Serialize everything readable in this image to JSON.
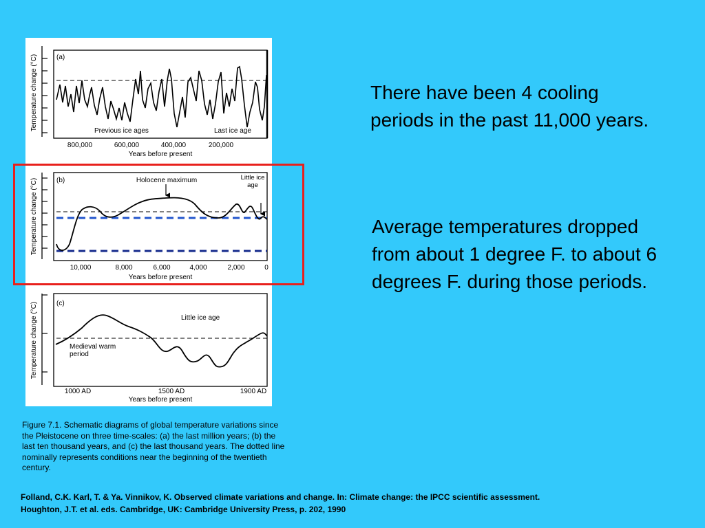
{
  "slide": {
    "point_1": "There have been 4 cooling periods in the past 11,000 years.",
    "point_2": "Average temperatures dropped from about 1 degree F. to about 6 degrees F. during those periods.",
    "caption": "Figure 7.1. Schematic diagrams of global temperature variations since the Pleistocene on three time-scales: (a) the last million years; (b) the last ten thousand years, and (c) the last thousand years. The dotted line nominally represents conditions near the beginning of the twentieth century.",
    "citation_line_1": "Folland, C.K. Karl, T. & Ya. Vinnikov, K. Observed climate variations and change. In: Climate change: the IPCC scientific assessment.",
    "citation_line_2": "Houghton, J.T. et al. eds. Cambridge, UK: Cambridge University Press, p. 202, 1990"
  },
  "colors": {
    "background": "#33c9fb",
    "highlight_box": "#e8201c",
    "blue_dashed_lines": "#2255cc",
    "navy_dashed_line": "#142a8c"
  },
  "chart_data": [
    {
      "type": "line",
      "panel_label": "(a)",
      "ylabel": "Temperature change (°C)",
      "xlabel": "Years before present",
      "x_ticks": [
        "800,000",
        "600,000",
        "400,000",
        "200,000"
      ],
      "annotations": [
        "Previous ice ages",
        "Last ice age"
      ],
      "reference_line": "dashed",
      "grid": false
    },
    {
      "type": "line",
      "panel_label": "(b)",
      "ylabel": "Temperature change (°C)",
      "xlabel": "Years before present",
      "x_ticks": [
        "10,000",
        "8,000",
        "6,000",
        "4,000",
        "2,000",
        "0"
      ],
      "annotations": [
        "Holocene maximum",
        "Little ice age"
      ],
      "reference_line": "dashed",
      "highlighted": true,
      "grid": false
    },
    {
      "type": "line",
      "panel_label": "(c)",
      "ylabel": "Temperature change (°C)",
      "xlabel": "Years before present",
      "x_ticks": [
        "1000 AD",
        "1500 AD",
        "1900 AD"
      ],
      "annotations": [
        "Little ice age",
        "Medieval warm period"
      ],
      "reference_line": "dashed",
      "grid": false
    }
  ]
}
